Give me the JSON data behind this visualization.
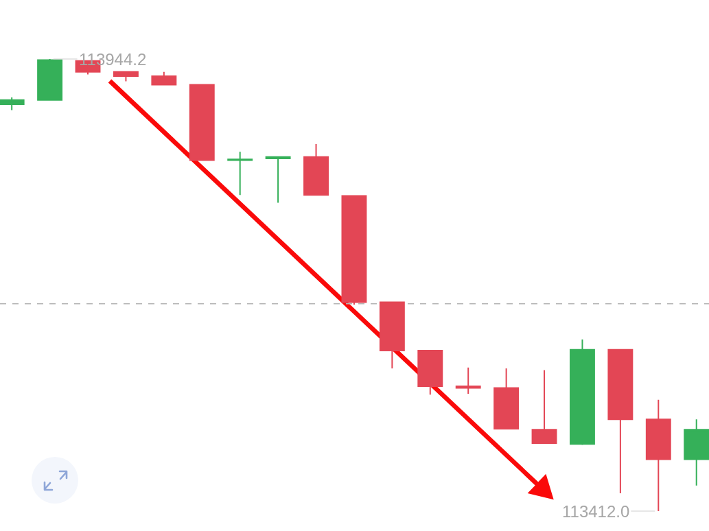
{
  "chart_data": {
    "type": "candlestick",
    "categories": [
      null,
      null,
      null,
      null,
      null,
      null,
      null,
      null,
      null,
      null,
      null,
      null,
      null,
      null,
      null,
      null,
      null,
      null,
      null
    ],
    "ohlc": [
      [
        113891,
        113899,
        113884,
        113896
      ],
      [
        113896,
        113944.2,
        113896,
        113943
      ],
      [
        113942,
        113942,
        113926,
        113929
      ],
      [
        113929,
        113929,
        113918,
        113924
      ],
      [
        113924,
        113929,
        113914,
        113914
      ],
      [
        113914,
        113914,
        113825,
        113825
      ],
      [
        113825,
        113835,
        113784,
        113826
      ],
      [
        113827,
        113829,
        113775,
        113829
      ],
      [
        113829,
        113844,
        113784,
        113784
      ],
      [
        113783,
        113783,
        113655,
        113658
      ],
      [
        113658,
        113658,
        113580,
        113601
      ],
      [
        113601,
        113601,
        113549,
        113559
      ],
      [
        113559,
        113581,
        113550,
        113557
      ],
      [
        113557,
        113580,
        113509,
        113509
      ],
      [
        113508,
        113578,
        113492,
        113492
      ],
      [
        113491,
        113614,
        113490,
        113602
      ],
      [
        113602,
        113602,
        113433,
        113520
      ],
      [
        113520,
        113543,
        113412.0,
        113473
      ],
      [
        113473,
        113520,
        113442,
        113508
      ]
    ],
    "colors": [
      "#35b059",
      "#35b059",
      "#e34655",
      "#e34655",
      "#e34655",
      "#e34655",
      "#35b059",
      "#35b059",
      "#e34655",
      "#e34655",
      "#e34655",
      "#e34655",
      "#e34655",
      "#e34655",
      "#e34655",
      "#35b059",
      "#e34655",
      "#e34655",
      "#35b059"
    ],
    "ref_lines": [
      {
        "axis": "y",
        "value": 113656,
        "color": "#b4b4b4",
        "line_style": "dashed"
      }
    ],
    "annotations": [
      "113944.2",
      "113412.0"
    ],
    "tick_labels": false
  }
}
